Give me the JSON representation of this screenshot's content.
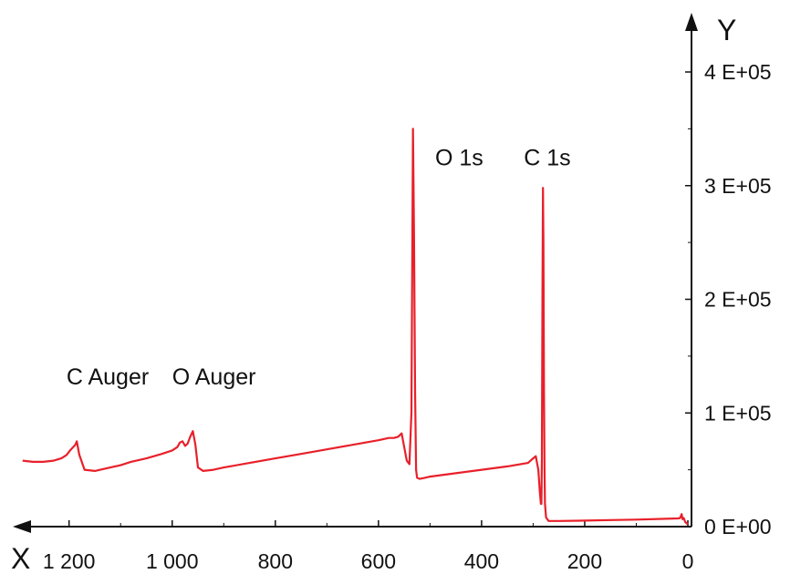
{
  "chart_data": {
    "type": "line",
    "xlabel": "X",
    "ylabel": "Y",
    "x_reversed": true,
    "xlim": [
      1295,
      0
    ],
    "ylim": [
      0,
      430000
    ],
    "x_ticks": [
      {
        "value": 1200,
        "label": "1 200"
      },
      {
        "value": 1000,
        "label": "1 000"
      },
      {
        "value": 800,
        "label": "800"
      },
      {
        "value": 600,
        "label": "600"
      },
      {
        "value": 400,
        "label": "400"
      },
      {
        "value": 200,
        "label": "200"
      },
      {
        "value": 0,
        "label": "0"
      }
    ],
    "x_minor_ticks": [
      1100,
      900,
      700,
      500,
      300,
      100
    ],
    "y_ticks": [
      {
        "value": 0,
        "label": "0 E+00"
      },
      {
        "value": 100000,
        "label": "1 E+05"
      },
      {
        "value": 200000,
        "label": "2 E+05"
      },
      {
        "value": 300000,
        "label": "3 E+05"
      },
      {
        "value": 400000,
        "label": "4 E+05"
      }
    ],
    "y_minor_ticks": [
      50000,
      150000,
      250000,
      350000
    ],
    "grid": false,
    "series": [
      {
        "color": "#e8202a",
        "x": [
          1290,
          1270,
          1250,
          1230,
          1215,
          1205,
          1198,
          1192,
          1188,
          1185,
          1180,
          1170,
          1150,
          1120,
          1100,
          1080,
          1050,
          1020,
          1000,
          990,
          985,
          980,
          975,
          970,
          965,
          960,
          955,
          950,
          940,
          920,
          900,
          850,
          800,
          750,
          700,
          650,
          600,
          580,
          570,
          562,
          555,
          550,
          545,
          540,
          536,
          533,
          531,
          529,
          527,
          525,
          520,
          510,
          500,
          450,
          400,
          350,
          310,
          300,
          295,
          290,
          287,
          285,
          284,
          283,
          282,
          281,
          280,
          279,
          278,
          277,
          275,
          270,
          250,
          200,
          150,
          100,
          50,
          20,
          15,
          12,
          10,
          8,
          5,
          0
        ],
        "y": [
          58000,
          57000,
          57000,
          58000,
          60000,
          63000,
          67000,
          70000,
          72000,
          75000,
          63000,
          50000,
          49000,
          52000,
          54000,
          57000,
          60000,
          64000,
          67000,
          70000,
          74000,
          75000,
          71000,
          73000,
          79000,
          84000,
          72000,
          52000,
          49000,
          50000,
          52000,
          56000,
          60000,
          64000,
          68000,
          72000,
          76000,
          78000,
          78000,
          79000,
          82000,
          70000,
          58000,
          55000,
          100000,
          350000,
          250000,
          120000,
          50000,
          43000,
          42000,
          43000,
          44000,
          47000,
          50000,
          53000,
          56000,
          60000,
          62000,
          50000,
          30000,
          20000,
          20000,
          60000,
          200000,
          298000,
          250000,
          120000,
          50000,
          20000,
          8000,
          5000,
          5000,
          5300,
          5800,
          6200,
          6800,
          7200,
          7500,
          11000,
          6500,
          7500,
          4000,
          2000
        ]
      }
    ],
    "annotations": [
      {
        "text": "C Auger",
        "x": 1205,
        "y": 125000
      },
      {
        "text": "O Auger",
        "x": 1000,
        "y": 125000
      },
      {
        "text": "O 1s",
        "x": 490,
        "y": 318000
      },
      {
        "text": "C 1s",
        "x": 318,
        "y": 318000
      }
    ]
  }
}
